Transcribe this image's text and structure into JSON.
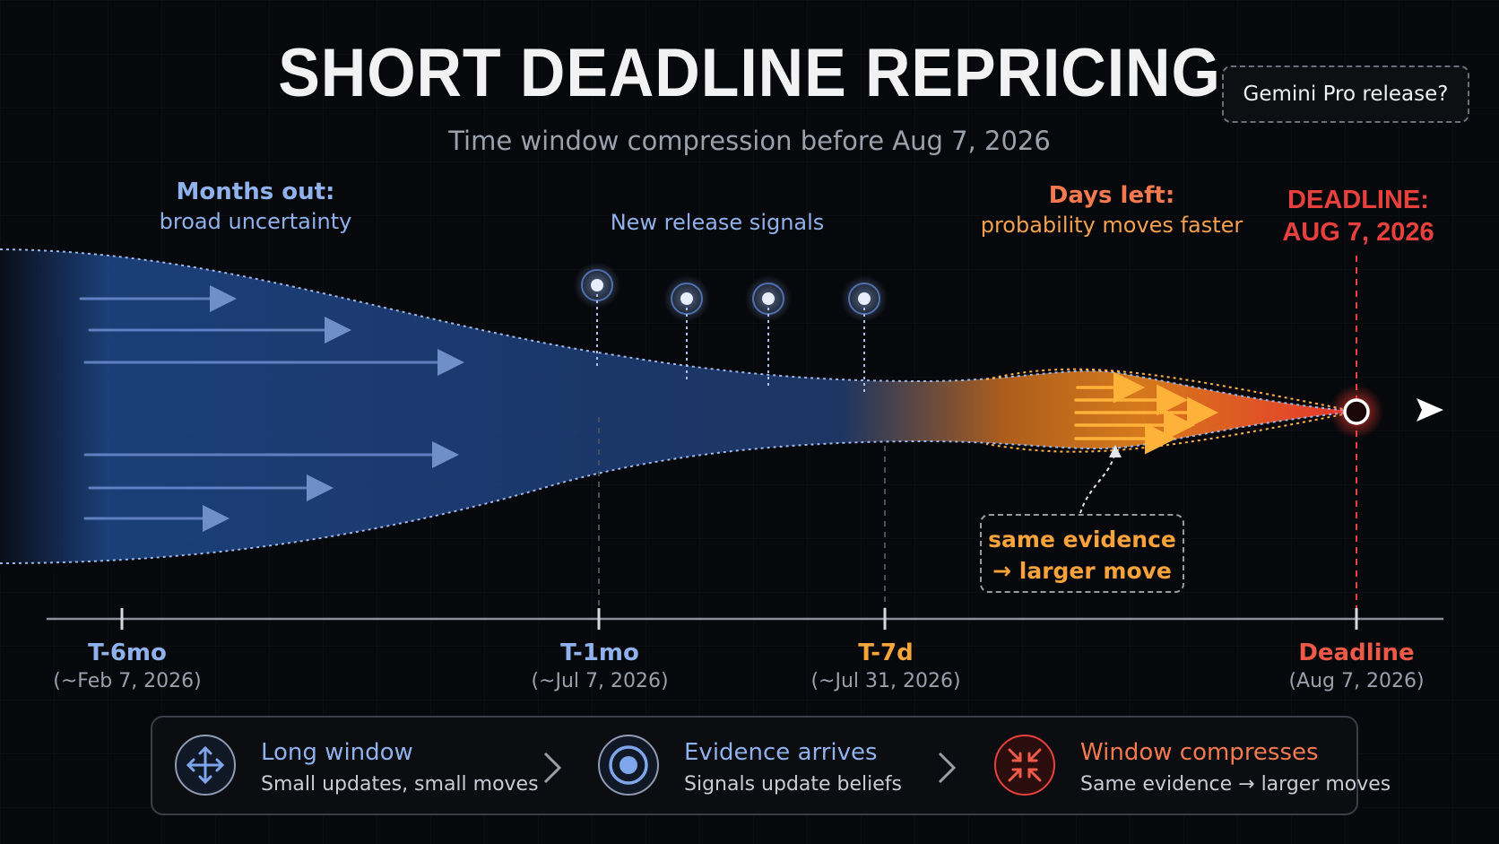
{
  "title": "SHORT DEADLINE REPRICING",
  "subtitle": "Time window compression before Aug 7, 2026",
  "tag": "Gemini Pro release?",
  "annotations": {
    "months_out": {
      "line1": "Months out:",
      "line2": "broad uncertainty"
    },
    "signals": "New release signals",
    "days_left": {
      "line1": "Days left:",
      "line2": "probability moves faster"
    },
    "deadline": {
      "line1": "DEADLINE:",
      "line2": "AUG 7, 2026"
    },
    "callout": {
      "line1": "same evidence",
      "line2": "→ larger move"
    }
  },
  "ticks": [
    {
      "name": "T-6mo",
      "date": "(~Feb 7, 2026)"
    },
    {
      "name": "T-1mo",
      "date": "(~Jul 7, 2026)"
    },
    {
      "name": "T-7d",
      "date": "(~Jul 31, 2026)"
    },
    {
      "name": "Deadline",
      "date": "(Aug 7, 2026)"
    }
  ],
  "steps": [
    {
      "title": "Long window",
      "desc": "Small updates, small moves",
      "icon": "expand-arrows-icon"
    },
    {
      "title": "Evidence arrives",
      "desc": "Signals update beliefs",
      "icon": "target-icon"
    },
    {
      "title": "Window compresses",
      "desc": "Same evidence → larger moves",
      "icon": "compress-arrows-icon"
    }
  ],
  "colors": {
    "blue": "#8fb1ec",
    "orange": "#f5a53a",
    "red": "#e8413d",
    "funnel_blue": "#1f3f78"
  }
}
